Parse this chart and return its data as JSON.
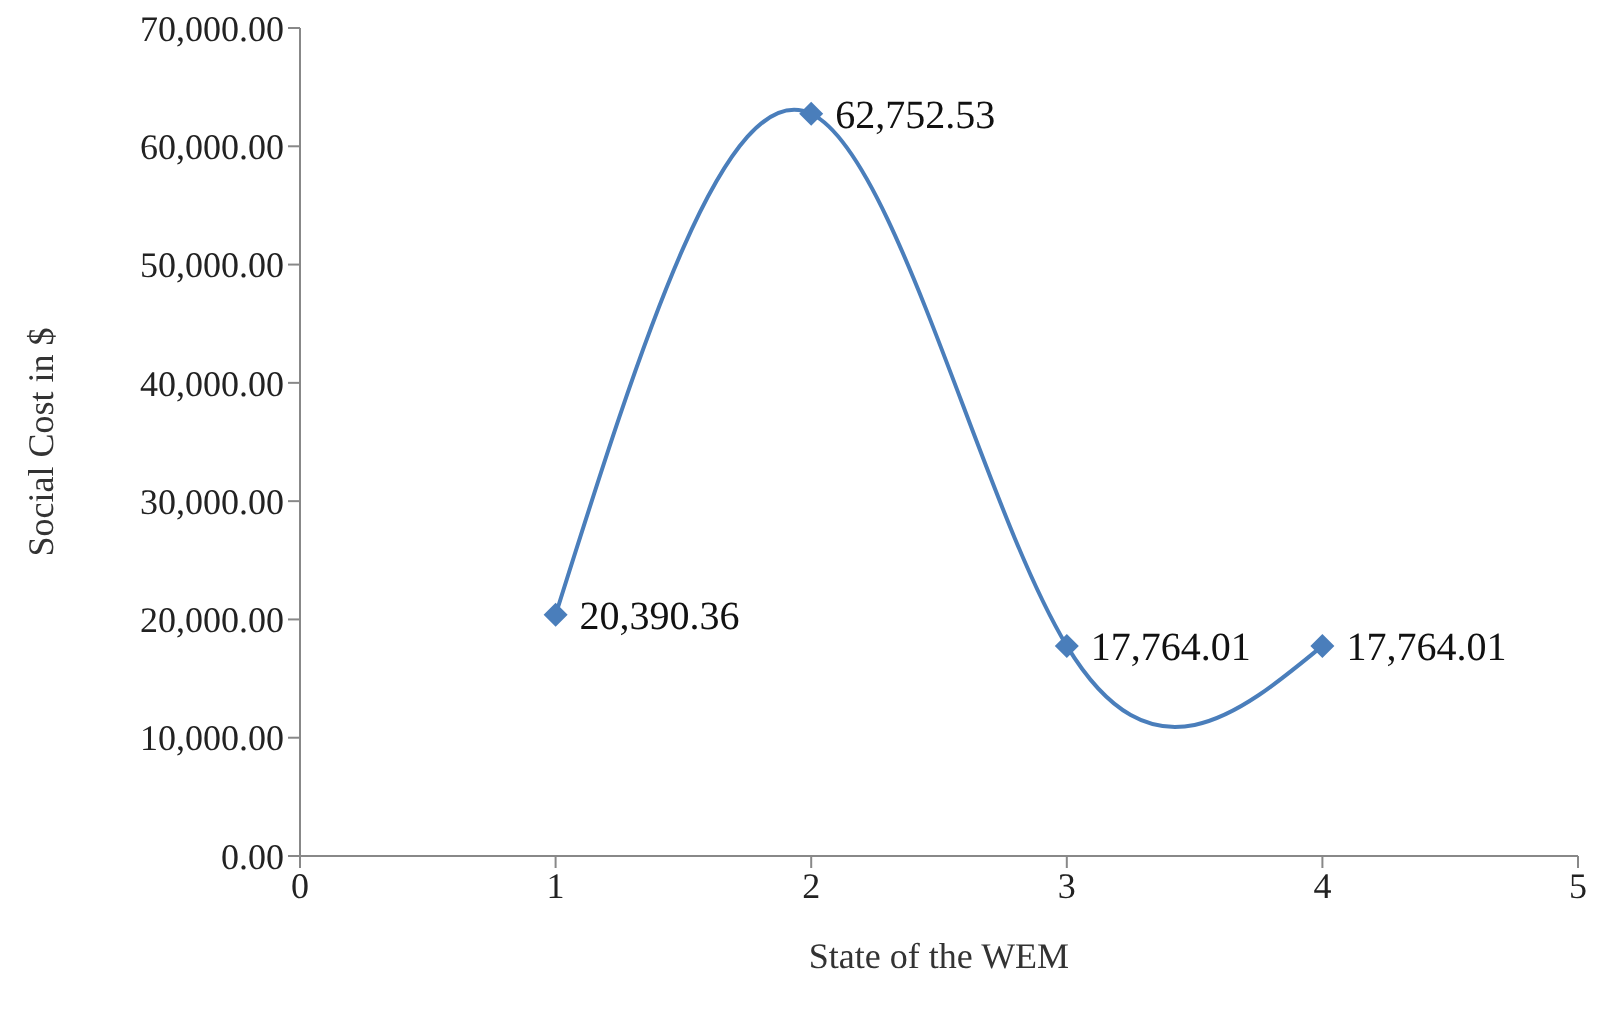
{
  "chart_data": {
    "type": "line",
    "xlabel": "State of the WEM",
    "ylabel": "Social Cost in $",
    "x": [
      1,
      2,
      3,
      4
    ],
    "series": [
      {
        "color": "#4a7ebb",
        "values": [
          20390.36,
          62752.53,
          17764.01,
          17764.01
        ],
        "value_labels": [
          "20,390.36",
          "62,752.53",
          "17,764.01",
          "17,764.01"
        ]
      }
    ],
    "xlim": [
      0,
      5
    ],
    "xticks": [
      0,
      1,
      2,
      3,
      4,
      5
    ],
    "ylim": [
      0,
      70000
    ],
    "yticks": [
      {
        "value": 0,
        "label": "0.00"
      },
      {
        "value": 10000,
        "label": "10,000.00"
      },
      {
        "value": 20000,
        "label": "20,000.00"
      },
      {
        "value": 30000,
        "label": "30,000.00"
      },
      {
        "value": 40000,
        "label": "40,000.00"
      },
      {
        "value": 50000,
        "label": "50,000.00"
      },
      {
        "value": 60000,
        "label": "60,000.00"
      },
      {
        "value": 70000,
        "label": "70,000.00"
      }
    ],
    "grid": false,
    "legend": false,
    "marker": "diamond",
    "line_style": "solid"
  }
}
